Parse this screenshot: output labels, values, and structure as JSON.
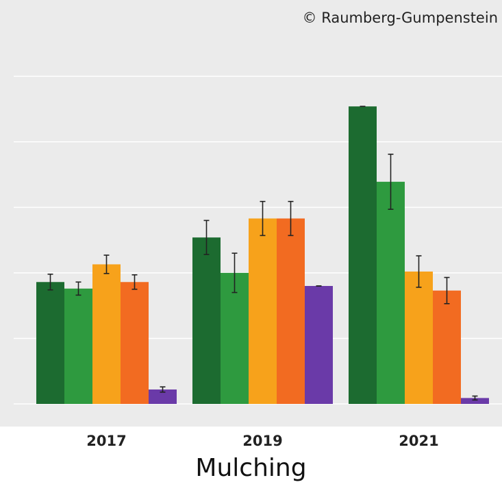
{
  "copyright": "© Raumberg-Gumpenstein",
  "chart_data": {
    "type": "bar",
    "title": "",
    "xlabel": "Mulching",
    "ylabel": "",
    "categories": [
      "2017",
      "2019",
      "2021"
    ],
    "ylim": [
      0,
      5.4
    ],
    "grid": true,
    "legend": "none",
    "series": [
      {
        "color": "#1c6b30",
        "values": [
          1.86,
          2.54,
          4.54
        ],
        "errors": [
          0.12,
          0.26,
          0.0
        ]
      },
      {
        "color": "#2e9a3f",
        "values": [
          1.76,
          2.0,
          3.39
        ],
        "errors": [
          0.1,
          0.3,
          0.42
        ]
      },
      {
        "color": "#f7a21b",
        "values": [
          2.13,
          2.83,
          2.02
        ],
        "errors": [
          0.14,
          0.26,
          0.24
        ]
      },
      {
        "color": "#f26b21",
        "values": [
          1.86,
          2.83,
          1.73
        ],
        "errors": [
          0.11,
          0.26,
          0.2
        ]
      },
      {
        "color": "#6a3aa8",
        "values": [
          0.22,
          1.8,
          0.09
        ],
        "errors": [
          0.04,
          0.0,
          0.03
        ]
      }
    ]
  }
}
